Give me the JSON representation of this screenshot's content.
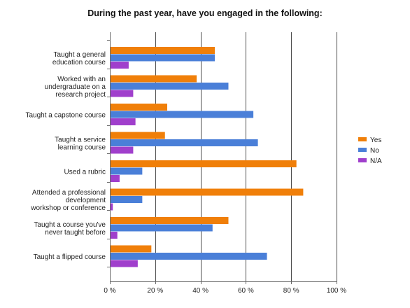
{
  "chart_data": {
    "type": "bar",
    "orientation": "horizontal",
    "title": "During the past year, have you engaged in the following:",
    "xlabel": "",
    "ylabel": "",
    "xlim": [
      0,
      100
    ],
    "grid": true,
    "legend_position": "right",
    "categories": [
      [
        "Taught a general",
        "education course"
      ],
      [
        "Worked with an",
        "undergraduate on a",
        "research project"
      ],
      [
        "Taught a capstone course"
      ],
      [
        "Taught a service",
        "learning course"
      ],
      [
        "Used a rubric"
      ],
      [
        "Attended a professional",
        "development",
        "workshop or conference"
      ],
      [
        "Taught a course you've",
        "never taught before"
      ],
      [
        "Taught a flipped course"
      ]
    ],
    "ticks": [
      "0 %",
      "20 %",
      "40 %",
      "60 %",
      "80 %",
      "100 %"
    ],
    "tick_values": [
      0,
      20,
      40,
      60,
      80,
      100
    ],
    "series": [
      {
        "name": "Yes",
        "color": "#f07f09",
        "values": [
          46,
          38,
          25,
          24,
          82,
          85,
          52,
          18
        ]
      },
      {
        "name": "No",
        "color": "#4a7fd8",
        "values": [
          46,
          52,
          63,
          65,
          14,
          14,
          45,
          69
        ]
      },
      {
        "name": "N/A",
        "color": "#a03fcc",
        "values": [
          8,
          10,
          11,
          10,
          4,
          1,
          3,
          12
        ]
      }
    ]
  }
}
